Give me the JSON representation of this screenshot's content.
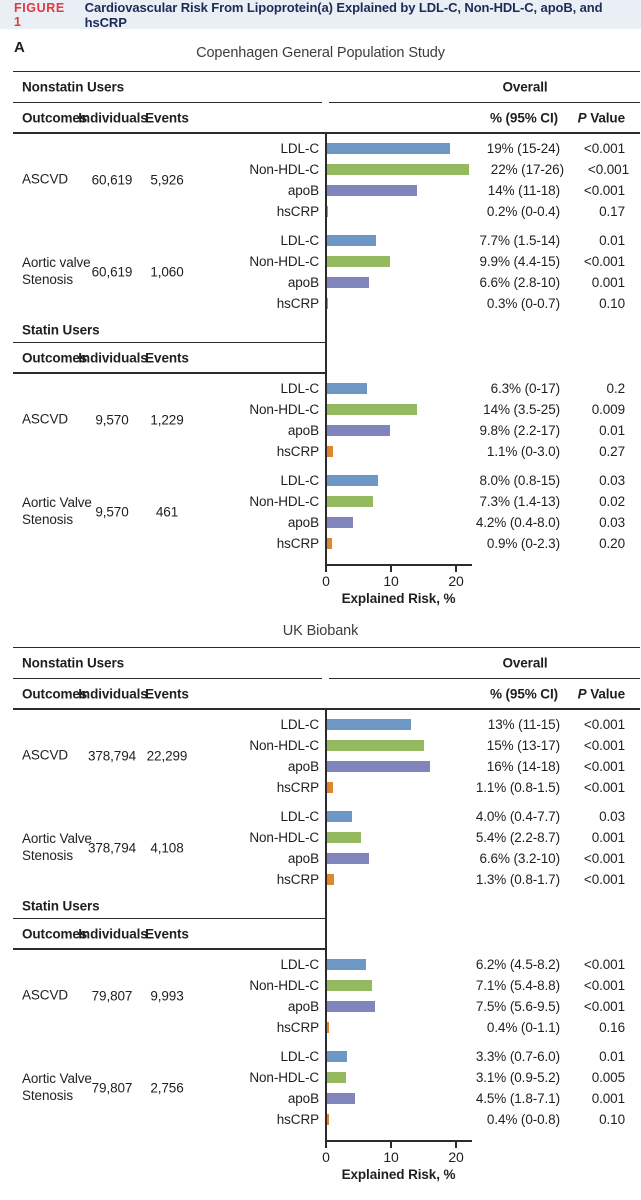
{
  "figure": {
    "tag": "FIGURE 1",
    "title": "Cardiovascular Risk From Lipoprotein(a) Explained by LDL-C, Non-HDL-C, apoB, and hsCRP"
  },
  "panel_label": "A",
  "colors": {
    "figure_tag_red": "#e2383f",
    "figure_title_navy": "#1b2b55",
    "band_background": "#e9eff5",
    "rule": "#2b2b2b",
    "LDL-C": "#6d98c6",
    "Non-HDL-C": "#95b95f",
    "apoB": "#8185bb",
    "hsCRP": "#e1862e"
  },
  "chart_data": [
    {
      "type": "bar",
      "title": "Copenhagen General Population Study",
      "xlabel": "Explained Risk, %",
      "ylabel": "",
      "xticks": [
        0,
        10,
        20
      ],
      "xlim": [
        0,
        22.6
      ],
      "grid": false,
      "categories": [
        "LDL-C",
        "Non-HDL-C",
        "apoB",
        "hsCRP"
      ],
      "sections": [
        {
          "label": "Nonstatin Users",
          "overall_label": "Overall",
          "show_overall": true,
          "columns": {
            "outcomes": "Outcomes",
            "individuals": "Individuals",
            "events": "Events",
            "ci": "% (95% CI)",
            "p": "P Value"
          },
          "groups": [
            {
              "outcome": "ASCVD",
              "individuals": "60,619",
              "events": "5,926",
              "rows": [
                {
                  "label": "LDL-C",
                  "value": 19,
                  "ci": "19% (15-24)",
                  "p": "<0.001"
                },
                {
                  "label": "Non-HDL-C",
                  "value": 22,
                  "ci": "22% (17-26)",
                  "p": "<0.001"
                },
                {
                  "label": "apoB",
                  "value": 14,
                  "ci": "14% (11-18)",
                  "p": "<0.001"
                },
                {
                  "label": "hsCRP",
                  "value": 0.2,
                  "ci": "0.2% (0-0.4)",
                  "p": "0.17"
                }
              ]
            },
            {
              "outcome": "Aortic valve Stenosis",
              "individuals": "60,619",
              "events": "1,060",
              "rows": [
                {
                  "label": "LDL-C",
                  "value": 7.7,
                  "ci": "7.7% (1.5-14)",
                  "p": "0.01"
                },
                {
                  "label": "Non-HDL-C",
                  "value": 9.9,
                  "ci": "9.9% (4.4-15)",
                  "p": "<0.001"
                },
                {
                  "label": "apoB",
                  "value": 6.6,
                  "ci": "6.6% (2.8-10)",
                  "p": "0.001"
                },
                {
                  "label": "hsCRP",
                  "value": 0.3,
                  "ci": "0.3% (0-0.7)",
                  "p": "0.10"
                }
              ]
            }
          ]
        },
        {
          "label": "Statin Users",
          "show_overall": false,
          "columns": {
            "outcomes": "Outcomes",
            "individuals": "Individuals",
            "events": "Events"
          },
          "groups": [
            {
              "outcome": "ASCVD",
              "individuals": "9,570",
              "events": "1,229",
              "rows": [
                {
                  "label": "LDL-C",
                  "value": 6.3,
                  "ci": "6.3% (0-17)",
                  "p": "0.2"
                },
                {
                  "label": "Non-HDL-C",
                  "value": 14,
                  "ci": "14% (3.5-25)",
                  "p": "0.009"
                },
                {
                  "label": "apoB",
                  "value": 9.8,
                  "ci": "9.8% (2.2-17)",
                  "p": "0.01"
                },
                {
                  "label": "hsCRP",
                  "value": 1.1,
                  "ci": "1.1% (0-3.0)",
                  "p": "0.27"
                }
              ]
            },
            {
              "outcome": "Aortic Valve Stenosis",
              "individuals": "9,570",
              "events": "461",
              "rows": [
                {
                  "label": "LDL-C",
                  "value": 8.0,
                  "ci": "8.0% (0.8-15)",
                  "p": "0.03"
                },
                {
                  "label": "Non-HDL-C",
                  "value": 7.3,
                  "ci": "7.3% (1.4-13)",
                  "p": "0.02"
                },
                {
                  "label": "apoB",
                  "value": 4.2,
                  "ci": "4.2% (0.4-8.0)",
                  "p": "0.03"
                },
                {
                  "label": "hsCRP",
                  "value": 0.9,
                  "ci": "0.9% (0-2.3)",
                  "p": "0.20"
                }
              ]
            }
          ]
        }
      ]
    },
    {
      "type": "bar",
      "title": "UK Biobank",
      "xlabel": "Explained Risk, %",
      "ylabel": "",
      "xticks": [
        0,
        10,
        20
      ],
      "xlim": [
        0,
        22.6
      ],
      "grid": false,
      "categories": [
        "LDL-C",
        "Non-HDL-C",
        "apoB",
        "hsCRP"
      ],
      "sections": [
        {
          "label": "Nonstatin Users",
          "overall_label": "Overall",
          "show_overall": true,
          "columns": {
            "outcomes": "Outcomes",
            "individuals": "Individuals",
            "events": "Events",
            "ci": "% (95% CI)",
            "p": "P Value"
          },
          "groups": [
            {
              "outcome": "ASCVD",
              "individuals": "378,794",
              "events": "22,299",
              "rows": [
                {
                  "label": "LDL-C",
                  "value": 13,
                  "ci": "13% (11-15)",
                  "p": "<0.001"
                },
                {
                  "label": "Non-HDL-C",
                  "value": 15,
                  "ci": "15% (13-17)",
                  "p": "<0.001"
                },
                {
                  "label": "apoB",
                  "value": 16,
                  "ci": "16% (14-18)",
                  "p": "<0.001"
                },
                {
                  "label": "hsCRP",
                  "value": 1.1,
                  "ci": "1.1% (0.8-1.5)",
                  "p": "<0.001"
                }
              ]
            },
            {
              "outcome": "Aortic Valve Stenosis",
              "individuals": "378,794",
              "events": "4,108",
              "rows": [
                {
                  "label": "LDL-C",
                  "value": 4.0,
                  "ci": "4.0% (0.4-7.7)",
                  "p": "0.03"
                },
                {
                  "label": "Non-HDL-C",
                  "value": 5.4,
                  "ci": "5.4% (2.2-8.7)",
                  "p": "0.001"
                },
                {
                  "label": "apoB",
                  "value": 6.6,
                  "ci": "6.6% (3.2-10)",
                  "p": "<0.001"
                },
                {
                  "label": "hsCRP",
                  "value": 1.3,
                  "ci": "1.3% (0.8-1.7)",
                  "p": "<0.001"
                }
              ]
            }
          ]
        },
        {
          "label": "Statin Users",
          "show_overall": false,
          "columns": {
            "outcomes": "Outcomes",
            "individuals": "Individuals",
            "events": "Events"
          },
          "groups": [
            {
              "outcome": "ASCVD",
              "individuals": "79,807",
              "events": "9,993",
              "rows": [
                {
                  "label": "LDL-C",
                  "value": 6.2,
                  "ci": "6.2% (4.5-8.2)",
                  "p": "<0.001"
                },
                {
                  "label": "Non-HDL-C",
                  "value": 7.1,
                  "ci": "7.1% (5.4-8.8)",
                  "p": "<0.001"
                },
                {
                  "label": "apoB",
                  "value": 7.5,
                  "ci": "7.5% (5.6-9.5)",
                  "p": "<0.001"
                },
                {
                  "label": "hsCRP",
                  "value": 0.4,
                  "ci": "0.4% (0-1.1)",
                  "p": "0.16"
                }
              ]
            },
            {
              "outcome": "Aortic Valve Stenosis",
              "individuals": "79,807",
              "events": "2,756",
              "rows": [
                {
                  "label": "LDL-C",
                  "value": 3.3,
                  "ci": "3.3% (0.7-6.0)",
                  "p": "0.01"
                },
                {
                  "label": "Non-HDL-C",
                  "value": 3.1,
                  "ci": "3.1% (0.9-5.2)",
                  "p": "0.005"
                },
                {
                  "label": "apoB",
                  "value": 4.5,
                  "ci": "4.5% (1.8-7.1)",
                  "p": "0.001"
                },
                {
                  "label": "hsCRP",
                  "value": 0.4,
                  "ci": "0.4% (0-0.8)",
                  "p": "0.10"
                }
              ]
            }
          ]
        }
      ]
    }
  ]
}
